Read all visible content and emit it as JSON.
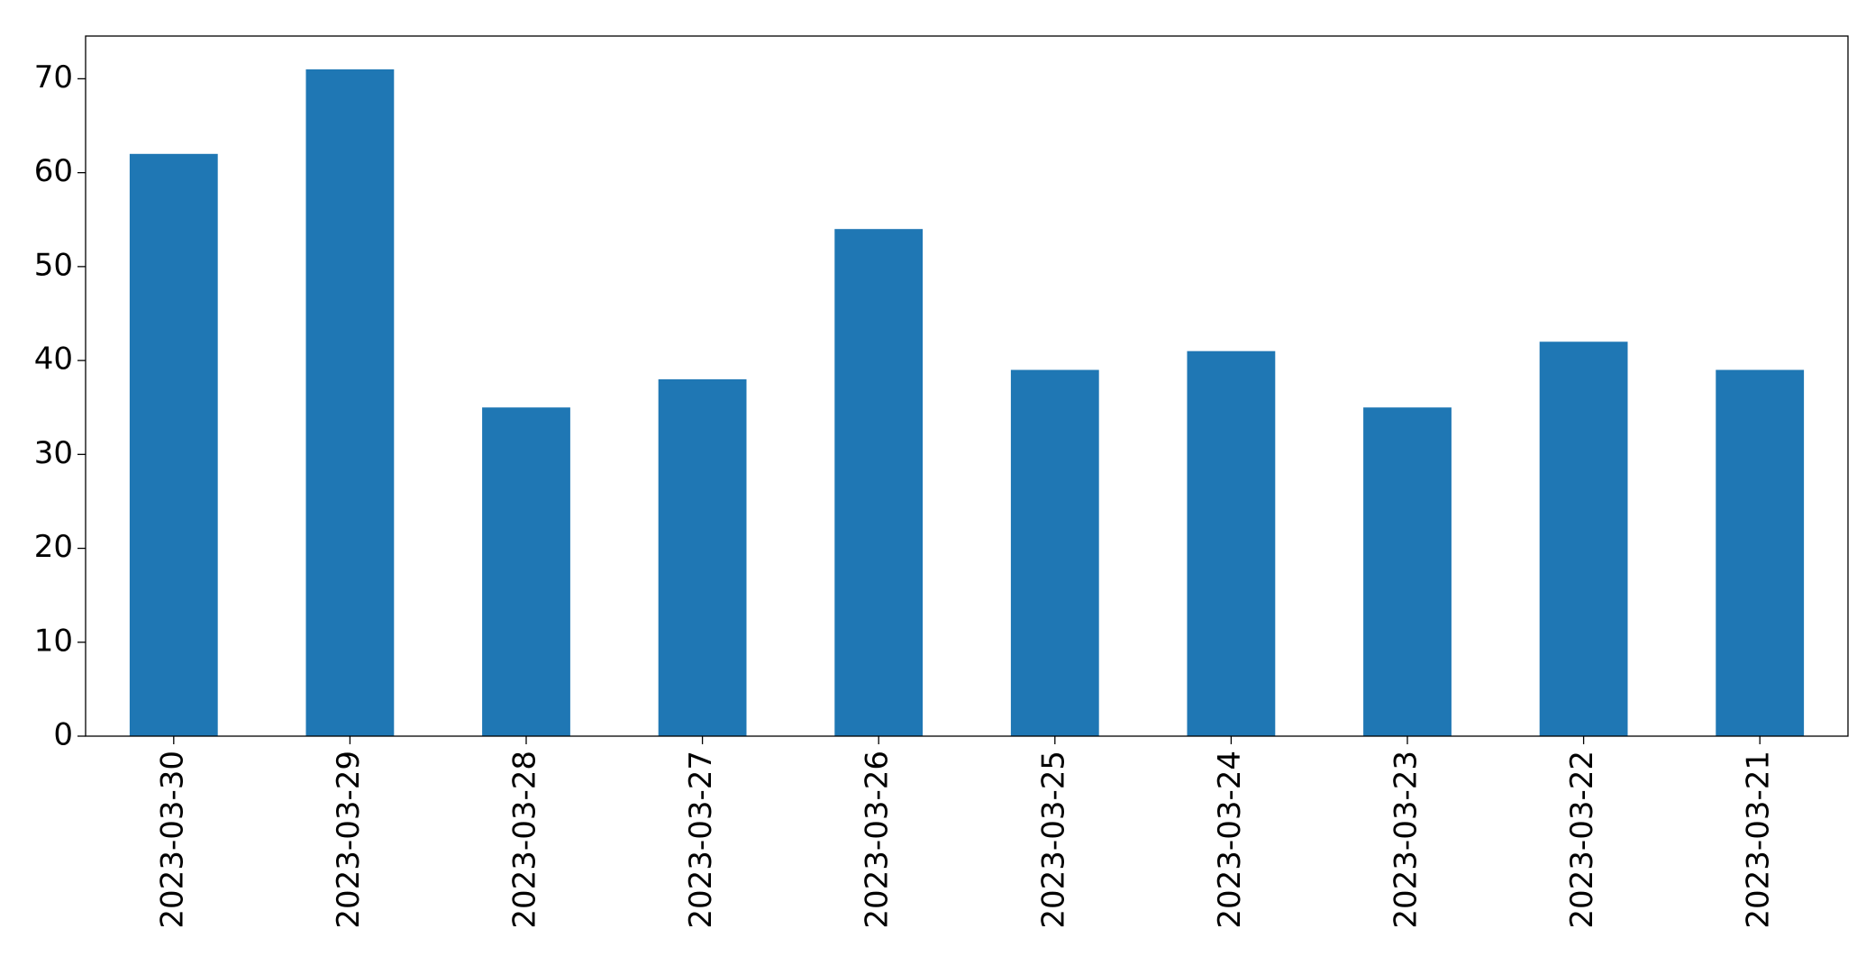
{
  "chart_data": {
    "type": "bar",
    "categories": [
      "2023-03-30",
      "2023-03-29",
      "2023-03-28",
      "2023-03-27",
      "2023-03-26",
      "2023-03-25",
      "2023-03-24",
      "2023-03-23",
      "2023-03-22",
      "2023-03-21"
    ],
    "values": [
      62,
      71,
      35,
      38,
      54,
      39,
      41,
      35,
      42,
      39
    ],
    "color": "#1f77b4",
    "ylim": [
      0,
      74.55
    ],
    "yticks": [
      0,
      10,
      20,
      30,
      40,
      50,
      60,
      70
    ],
    "grid": false
  }
}
